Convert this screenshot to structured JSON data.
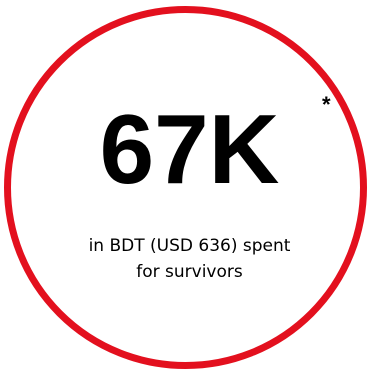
{
  "stat": {
    "value": "67K",
    "footnote_mark": "*",
    "caption_line1": "in BDT (USD 636) spent",
    "caption_line2": "for survivors"
  },
  "colors": {
    "ring": "#e3101e",
    "text": "#000000",
    "background": "#ffffff"
  }
}
